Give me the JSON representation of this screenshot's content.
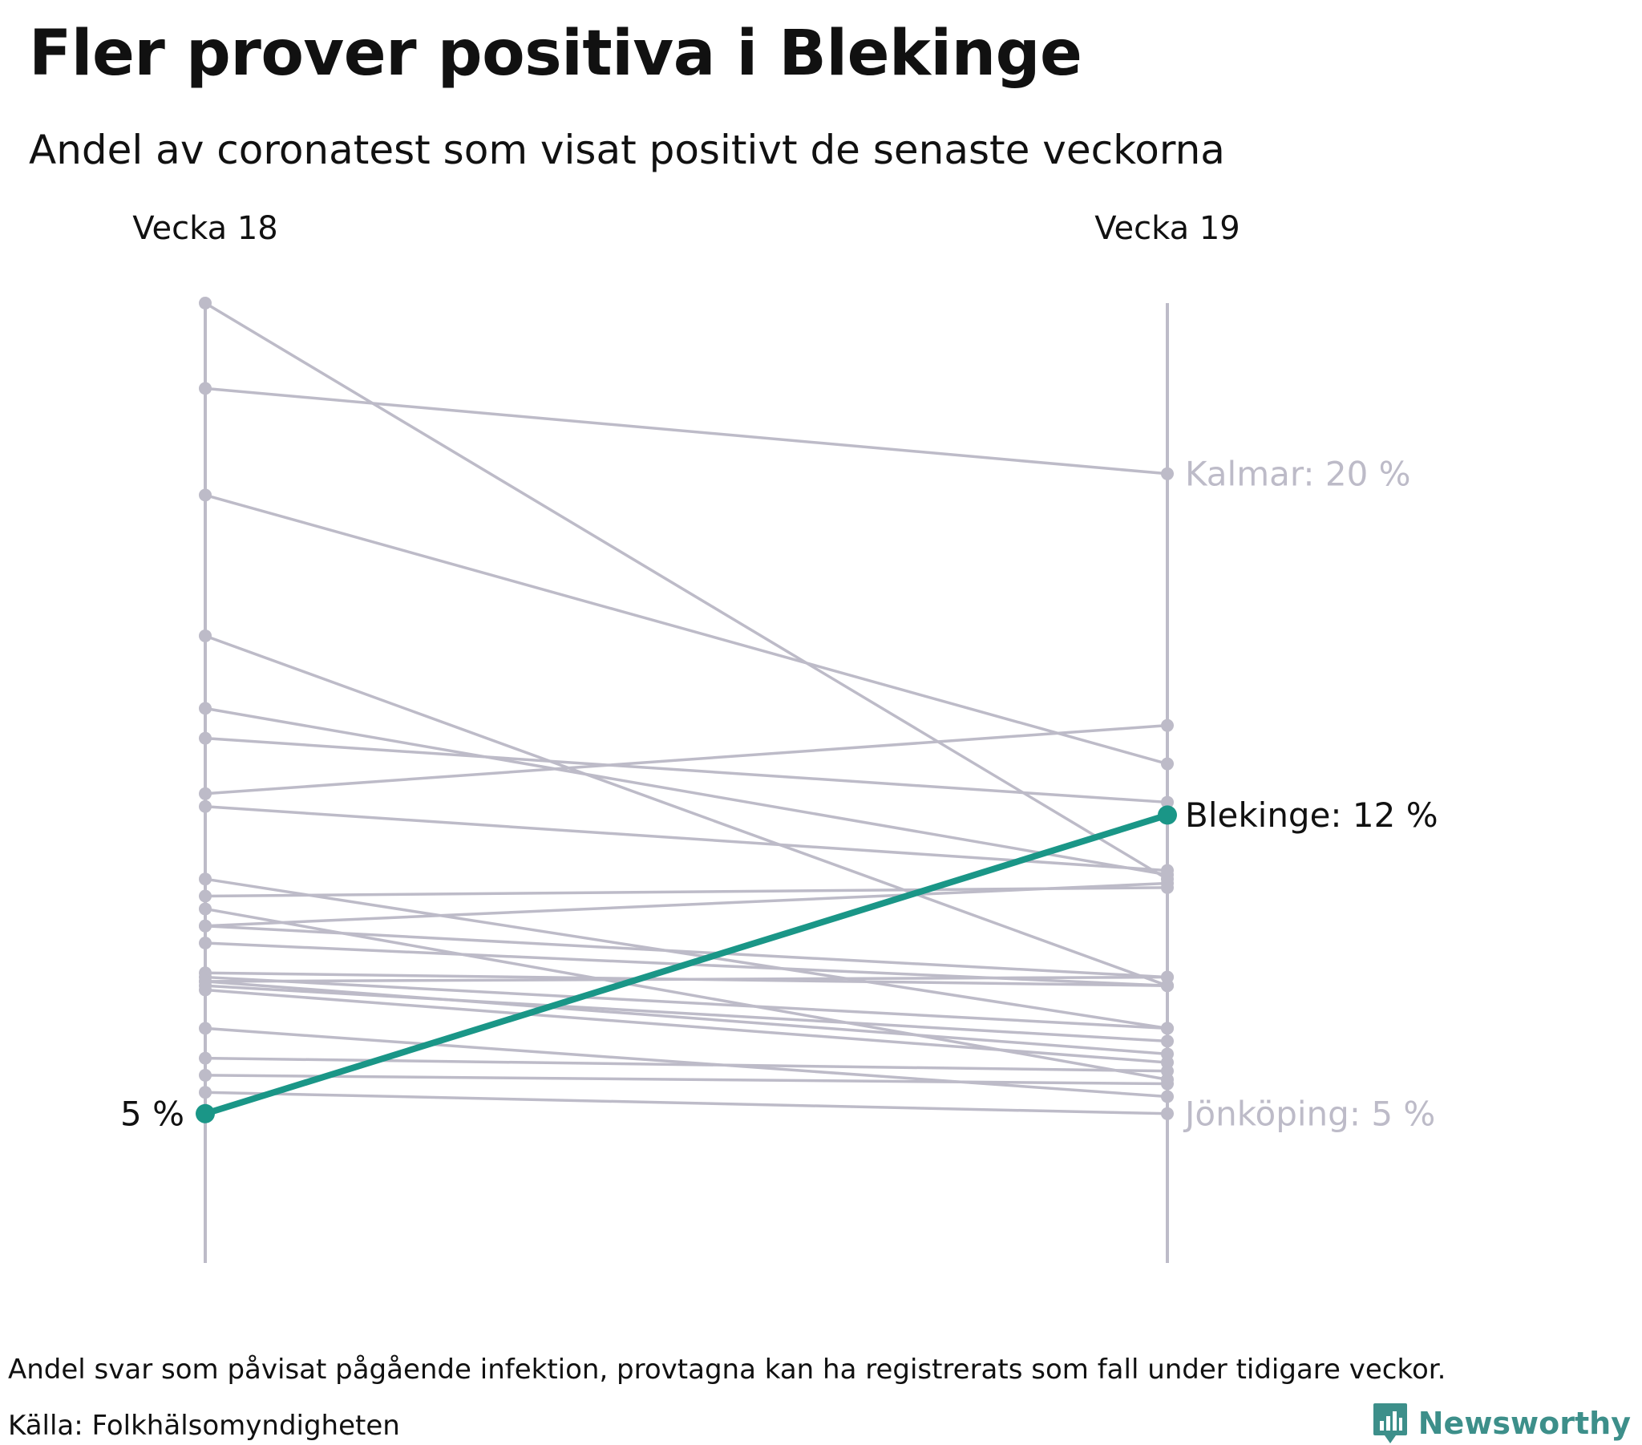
{
  "title": "Fler prover positiva i Blekinge",
  "subtitle": "Andel av coronatest som visat positivt de senaste veckorna",
  "chart_data": {
    "type": "slope",
    "categories": [
      "Vecka 18",
      "Vecka 19"
    ],
    "ylim": [
      1.5,
      24
    ],
    "highlight_color": "#1a9687",
    "muted_color": "#bdbbc8",
    "series": [
      {
        "name": "Blekinge",
        "values": [
          5,
          12
        ],
        "highlight": true
      },
      {
        "name": "Kalmar",
        "values": [
          22,
          20
        ]
      },
      {
        "name": "Jönköping",
        "values": [
          5.5,
          5
        ]
      },
      {
        "values": [
          24,
          10.5
        ]
      },
      {
        "values": [
          19.5,
          13.2
        ]
      },
      {
        "values": [
          16.2,
          8
        ]
      },
      {
        "values": [
          14.5,
          10.6
        ]
      },
      {
        "values": [
          13.8,
          12.3
        ]
      },
      {
        "values": [
          12.5,
          14.1
        ]
      },
      {
        "values": [
          12.2,
          10.7
        ]
      },
      {
        "values": [
          10.5,
          7.0
        ]
      },
      {
        "values": [
          10.1,
          10.3
        ]
      },
      {
        "values": [
          9.4,
          10.4
        ]
      },
      {
        "values": [
          9.8,
          5.8
        ]
      },
      {
        "values": [
          9.4,
          8.2
        ]
      },
      {
        "values": [
          9.0,
          8.0
        ]
      },
      {
        "values": [
          8.3,
          8.0
        ]
      },
      {
        "values": [
          8.2,
          7.0
        ]
      },
      {
        "values": [
          8.1,
          8.2
        ]
      },
      {
        "values": [
          7.9,
          6.2
        ]
      },
      {
        "values": [
          7.0,
          5.4
        ]
      },
      {
        "values": [
          6.3,
          6.0
        ]
      },
      {
        "values": [
          5.9,
          5.7
        ]
      },
      {
        "values": [
          8.1,
          6.4
        ]
      },
      {
        "values": [
          8.0,
          6.7
        ]
      }
    ],
    "labels": {
      "left_value": "5 %",
      "highlight": "Blekinge: 12 %",
      "top": "Kalmar: 20 %",
      "bottom": "Jönköping: 5 %"
    }
  },
  "footer": {
    "note": "Andel svar som påvisat pågående infektion, provtagna kan ha registrerats som fall under tidigare veckor.",
    "source": "Källa: Folkhälsomyndigheten",
    "brand": "Newsworthy"
  }
}
